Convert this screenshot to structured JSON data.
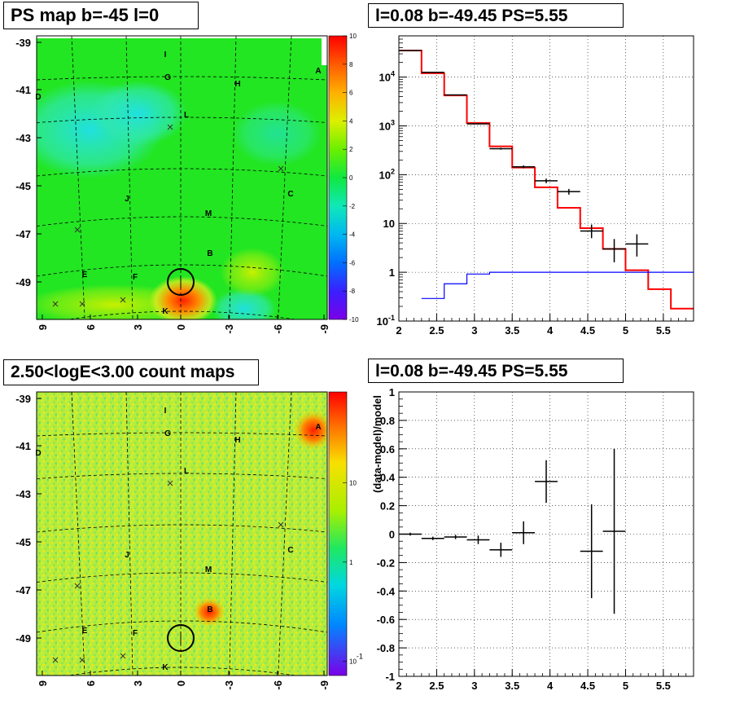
{
  "chart_data": [
    {
      "type": "heatmap",
      "title": "PS map b=-45 l=0",
      "xticks": [
        "9",
        "6",
        "3",
        "0",
        "-3",
        "-6",
        "-9"
      ],
      "yticks": [
        "-39",
        "-41",
        "-43",
        "-45",
        "-47",
        "-49"
      ],
      "palette_ticks": [
        "10",
        "8",
        "6",
        "4",
        "2",
        "0",
        "-2",
        "-4",
        "-6",
        "-8",
        "-10"
      ],
      "zlim": [
        -10,
        10
      ],
      "source_labels": [
        "I",
        "G",
        "H",
        "A",
        "D",
        "L",
        "C",
        "J",
        "M",
        "B",
        "E",
        "F",
        "K"
      ],
      "colors": {
        "background": "#22e622",
        "hotspot": "#ff5a00",
        "cool": "#22e8c8"
      }
    },
    {
      "type": "line",
      "title": "l=0.08 b=-49.45 PS=5.55",
      "xlabel": "",
      "ylabel": "",
      "xlim": [
        2,
        5.9
      ],
      "ylim": [
        0.1,
        70000
      ],
      "y_scale": "log",
      "xticks": [
        "2",
        "2.5",
        "3",
        "3.5",
        "4",
        "4.5",
        "5",
        "5.5"
      ],
      "yticks": [
        "10^-1",
        "1",
        "10",
        "10^2",
        "10^3",
        "10^4"
      ],
      "series": [
        {
          "color": "#ff0000",
          "style": "step",
          "edges": [
            2.0,
            2.3,
            2.6,
            2.9,
            3.2,
            3.5,
            3.8,
            4.1,
            4.4,
            4.7,
            5.0,
            5.3,
            5.6,
            5.9
          ],
          "values": [
            35000,
            12000,
            4200,
            1150,
            380,
            140,
            55,
            21,
            8,
            3,
            1.1,
            0.45,
            0.18
          ]
        },
        {
          "color": "#0000ff",
          "style": "step",
          "edges": [
            2.3,
            2.6,
            2.9,
            3.2,
            5.9
          ],
          "values": [
            0.29,
            0.58,
            0.92,
            1.0
          ]
        },
        {
          "color": "#000000",
          "style": "errorbar",
          "points": [
            {
              "x": 2.15,
              "y": 35000,
              "xerr": 0.15,
              "ylo": 34500,
              "yhi": 35500
            },
            {
              "x": 2.45,
              "y": 12500,
              "xerr": 0.15,
              "ylo": 12300,
              "yhi": 12700
            },
            {
              "x": 2.75,
              "y": 4300,
              "xerr": 0.15,
              "ylo": 4220,
              "yhi": 4380
            },
            {
              "x": 3.05,
              "y": 1100,
              "xerr": 0.15,
              "ylo": 1070,
              "yhi": 1130
            },
            {
              "x": 3.35,
              "y": 340,
              "xerr": 0.15,
              "ylo": 325,
              "yhi": 355
            },
            {
              "x": 3.65,
              "y": 145,
              "xerr": 0.15,
              "ylo": 135,
              "yhi": 155
            },
            {
              "x": 3.95,
              "y": 75,
              "xerr": 0.15,
              "ylo": 67,
              "yhi": 83
            },
            {
              "x": 4.25,
              "y": 45,
              "xerr": 0.15,
              "ylo": 39,
              "yhi": 51
            },
            {
              "x": 4.55,
              "y": 7,
              "xerr": 0.15,
              "ylo": 5,
              "yhi": 9.5
            },
            {
              "x": 4.85,
              "y": 3,
              "xerr": 0.15,
              "ylo": 1.6,
              "yhi": 4.8
            },
            {
              "x": 5.15,
              "y": 3.8,
              "xerr": 0.15,
              "ylo": 2.1,
              "yhi": 6
            }
          ]
        }
      ]
    },
    {
      "type": "heatmap",
      "title": "2.50<logE<3.00 count maps",
      "xticks": [
        "9",
        "6",
        "3",
        "0",
        "-3",
        "-6",
        "-9"
      ],
      "yticks": [
        "-39",
        "-41",
        "-43",
        "-45",
        "-47",
        "-49"
      ],
      "palette_ticks": [
        "10",
        "1",
        "10^-1"
      ],
      "z_scale": "log",
      "source_labels": [
        "I",
        "G",
        "H",
        "A",
        "D",
        "L",
        "C",
        "J",
        "M",
        "B",
        "E",
        "F",
        "K"
      ],
      "colors": {
        "background": "#b8ec3c",
        "hotspot": "#ff3000"
      }
    },
    {
      "type": "scatter",
      "title": "l=0.08 b=-49.45 PS=5.55",
      "xlabel": "",
      "ylabel": "(data-model)/model",
      "xlim": [
        2,
        5.9
      ],
      "ylim": [
        -1,
        1
      ],
      "xticks": [
        "2",
        "2.5",
        "3",
        "3.5",
        "4",
        "4.5",
        "5",
        "5.5"
      ],
      "yticks": [
        "-1",
        "-0.8",
        "-0.6",
        "-0.4",
        "-0.2",
        "0",
        "0.2",
        "0.4",
        "0.6",
        "0.8",
        "1"
      ],
      "points": [
        {
          "x": 2.15,
          "y": 0.0,
          "xerr": 0.15,
          "yerr": 0.01
        },
        {
          "x": 2.45,
          "y": -0.03,
          "xerr": 0.15,
          "yerr": 0.012
        },
        {
          "x": 2.75,
          "y": -0.02,
          "xerr": 0.15,
          "yerr": 0.015
        },
        {
          "x": 3.05,
          "y": -0.04,
          "xerr": 0.15,
          "yerr": 0.03
        },
        {
          "x": 3.35,
          "y": -0.11,
          "xerr": 0.15,
          "yerr": 0.05
        },
        {
          "x": 3.65,
          "y": 0.01,
          "xerr": 0.15,
          "yerr": 0.08
        },
        {
          "x": 3.95,
          "y": 0.37,
          "xerr": 0.15,
          "yerr": 0.15
        },
        {
          "x": 4.55,
          "y": -0.12,
          "xerr": 0.15,
          "yerr": 0.33
        },
        {
          "x": 4.85,
          "y": 0.02,
          "xerr": 0.15,
          "yerr": 0.58
        }
      ]
    }
  ]
}
